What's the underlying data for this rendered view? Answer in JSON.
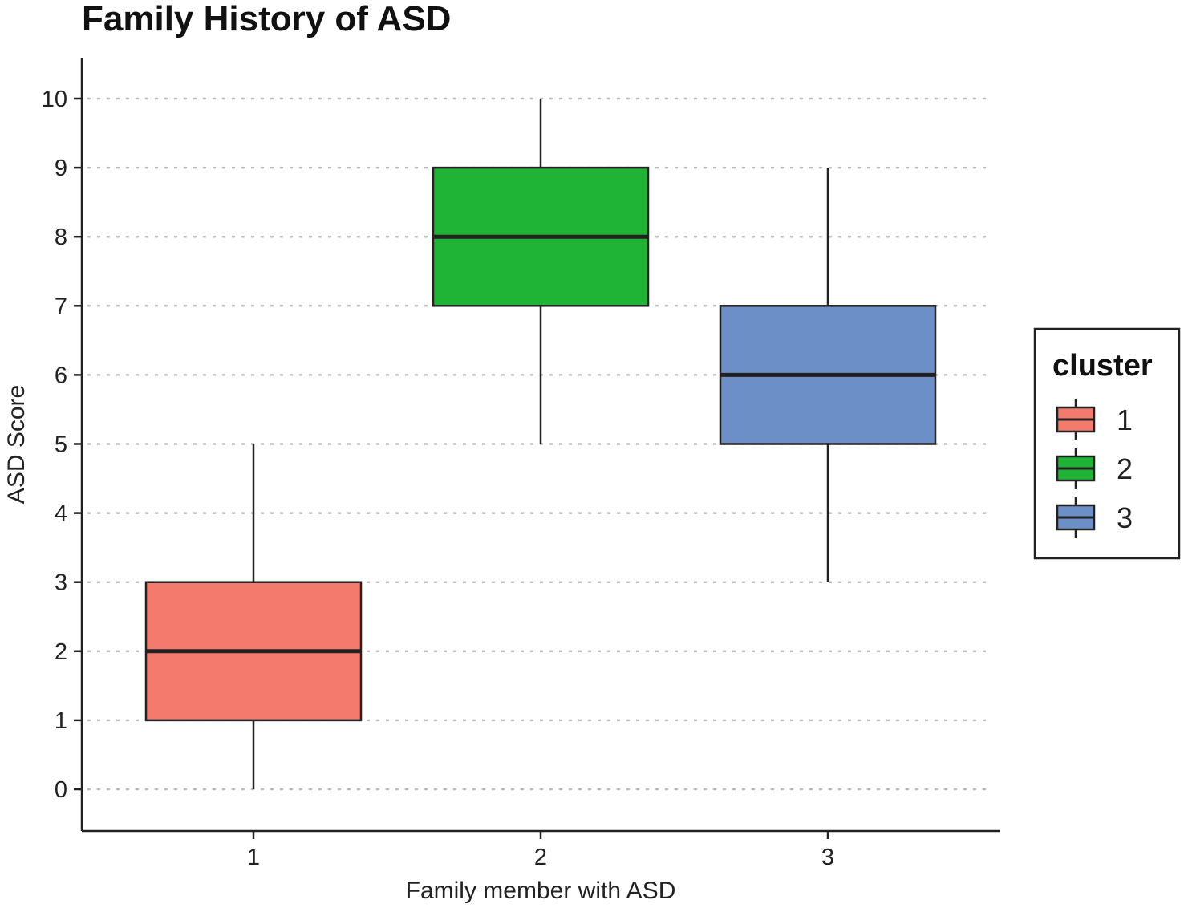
{
  "chart_data": {
    "type": "boxplot",
    "title": "Family History of ASD",
    "xlabel": "Family member with ASD",
    "ylabel": "ASD Score",
    "categories": [
      "1",
      "2",
      "3"
    ],
    "yticks": [
      "0",
      "1",
      "2",
      "3",
      "4",
      "5",
      "6",
      "7",
      "8",
      "9",
      "10"
    ],
    "ylim": [
      -0.6,
      10.6
    ],
    "grid": "horizontal dotted",
    "legend": {
      "title": "cluster",
      "placement": "right",
      "entries": [
        "1",
        "2",
        "3"
      ]
    },
    "series": [
      {
        "name": "1",
        "color": "#F47A6E",
        "min": 0,
        "q1": 1,
        "median": 2,
        "q3": 3,
        "max": 5
      },
      {
        "name": "2",
        "color": "#1FB436",
        "min": 5,
        "q1": 7,
        "median": 8,
        "q3": 9,
        "max": 10
      },
      {
        "name": "3",
        "color": "#6C8FC8",
        "min": 3,
        "q1": 5,
        "median": 6,
        "q3": 7,
        "max": 9
      }
    ]
  }
}
